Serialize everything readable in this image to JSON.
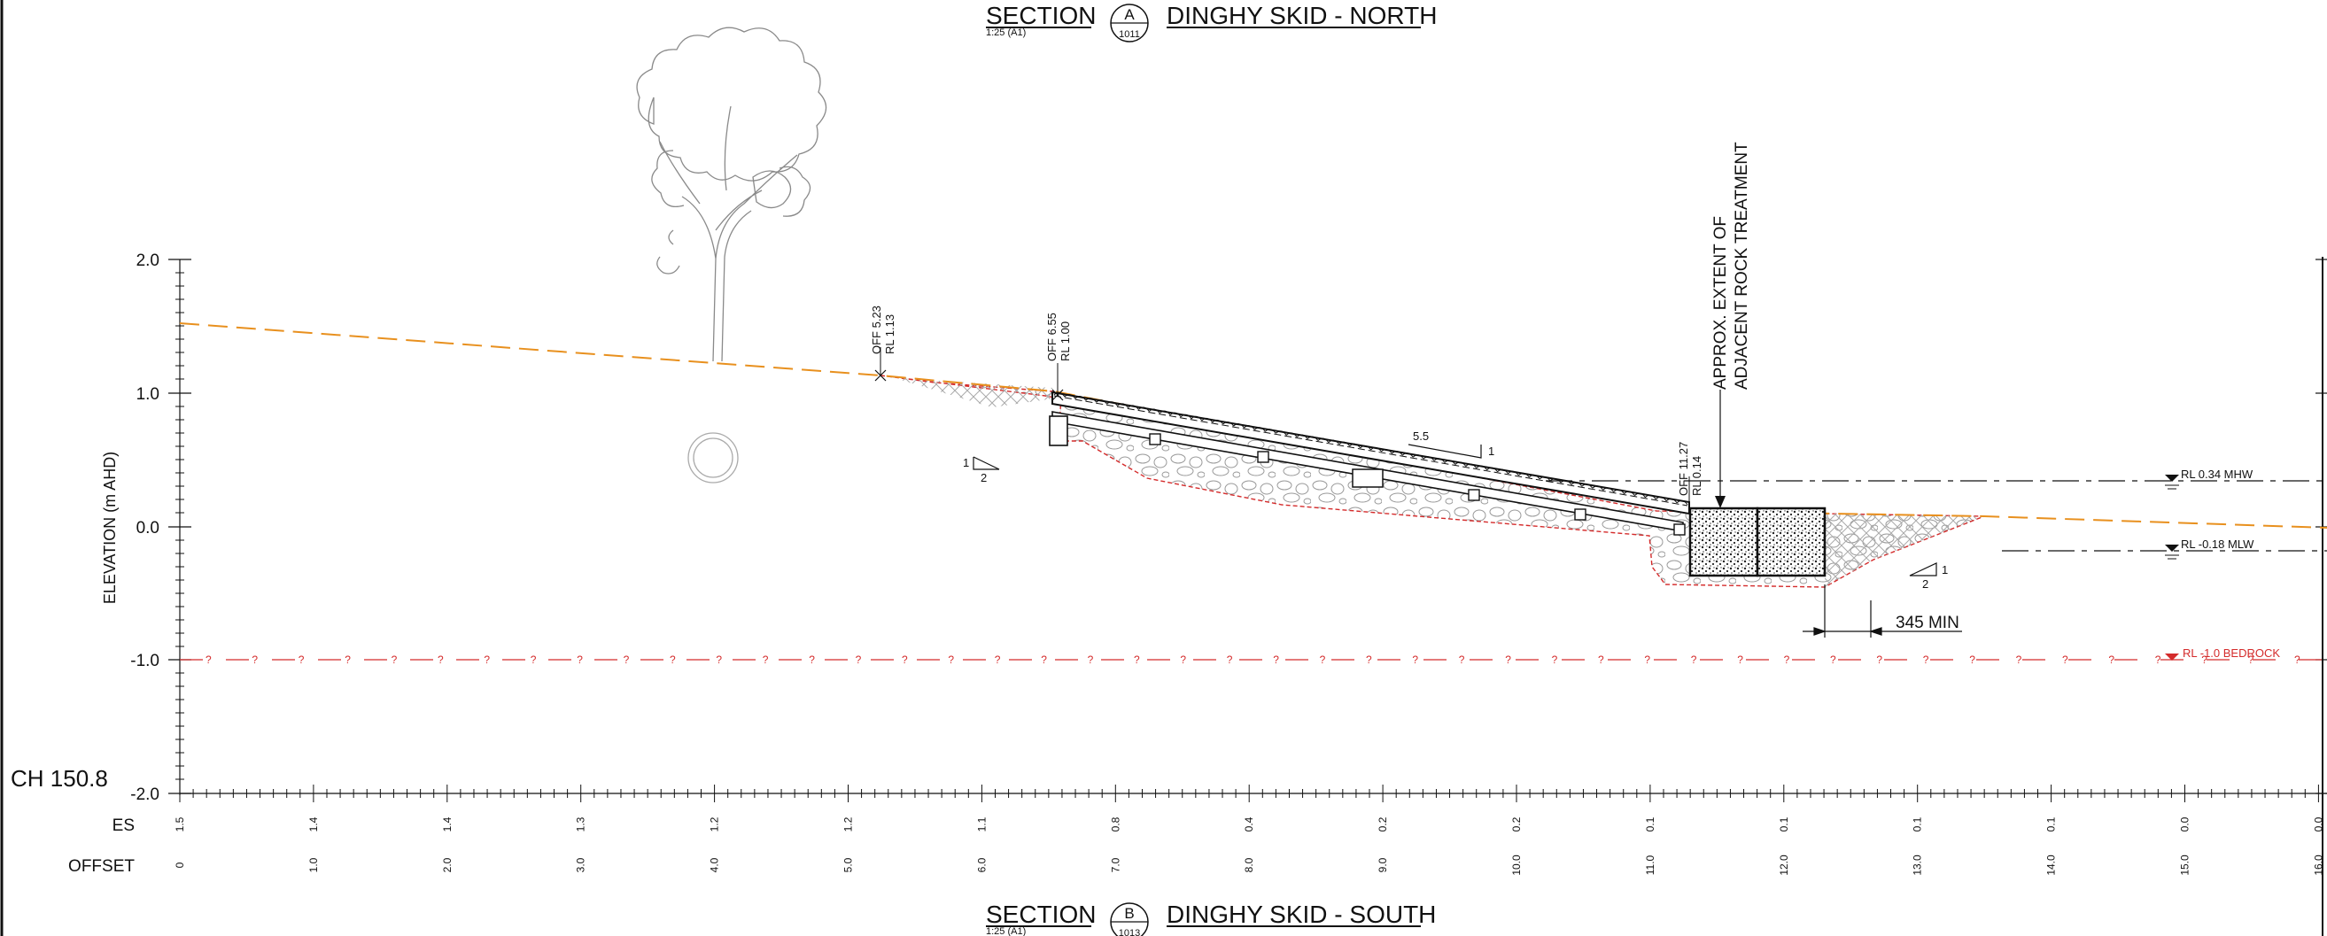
{
  "sections": [
    {
      "title": "SECTION",
      "letter": "A",
      "sheet": "1011",
      "scale": "1:25 (A1)",
      "name": "DINGHY SKID - NORTH"
    },
    {
      "title": "SECTION",
      "letter": "B",
      "sheet": "1013",
      "scale": "1:25 (A1)",
      "name": "DINGHY SKID - SOUTH"
    }
  ],
  "axis": {
    "label": "ELEVATION (m AHD)",
    "ticks": [
      "2.0",
      "1.0",
      "0.0",
      "-1.0",
      "-2.0"
    ],
    "tick_values": [
      2.0,
      1.0,
      0.0,
      -1.0,
      -2.0
    ]
  },
  "chainage": "CH 150.8",
  "rows": {
    "es_label": "ES",
    "offset_label": "OFFSET",
    "es_values": [
      "1.5",
      "1.4",
      "1.4",
      "1.3",
      "1.2",
      "1.2",
      "1.1",
      "0.8",
      "0.4",
      "0.2",
      "0.2",
      "0.1",
      "0.1",
      "0.1",
      "0.1",
      "0.0",
      "0.0"
    ],
    "offset_values": [
      "0",
      "1.0",
      "2.0",
      "3.0",
      "4.0",
      "5.0",
      "6.0",
      "7.0",
      "8.0",
      "9.0",
      "10.0",
      "11.0",
      "12.0",
      "13.0",
      "14.0",
      "15.0",
      "16.0"
    ]
  },
  "annotations": {
    "off1": "OFF 5.23",
    "rl1": "RL 1.13",
    "off2": "OFF 6.55",
    "rl2": "RL 1.00",
    "off3": "OFF 11.27",
    "rl3": "RL 0.14",
    "rock_line1": "APPROX. EXTENT OF",
    "rock_line2": "ADJACENT ROCK TREATMENT",
    "slope_run_main": "5.5",
    "slope_rise_main": "1",
    "slope_left_rise": "1",
    "slope_left_run": "2",
    "slope_right_rise": "1",
    "slope_right_run": "2",
    "dim": "345 MIN",
    "mhw": "RL 0.34 MHW",
    "mlw": "RL -0.18 MLW",
    "bedrock": "RL -1.0 BEDROCK",
    "question": "?"
  },
  "colors": {
    "existing_surface": "#e8901e",
    "bedrock": "#d42b2b",
    "line": "#111111",
    "fill_grey": "#9a9a9a"
  }
}
